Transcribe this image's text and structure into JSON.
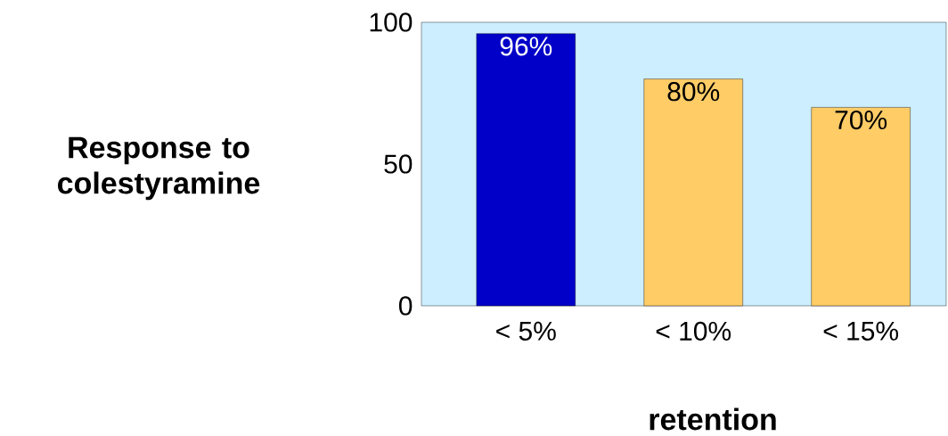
{
  "chart_data": {
    "type": "bar",
    "categories": [
      "< 5%",
      "< 10%",
      "< 15%"
    ],
    "values": [
      96,
      80,
      70
    ],
    "colors": [
      "#0000c8",
      "#ffcc66",
      "#ffcc66"
    ],
    "value_labels": [
      "96%",
      "80%",
      "70%"
    ],
    "ylabel": "Response to colestyramine",
    "xlabel": "retention",
    "ylim": [
      0,
      100
    ],
    "yticks": [
      0,
      50,
      100
    ],
    "grid": false
  }
}
